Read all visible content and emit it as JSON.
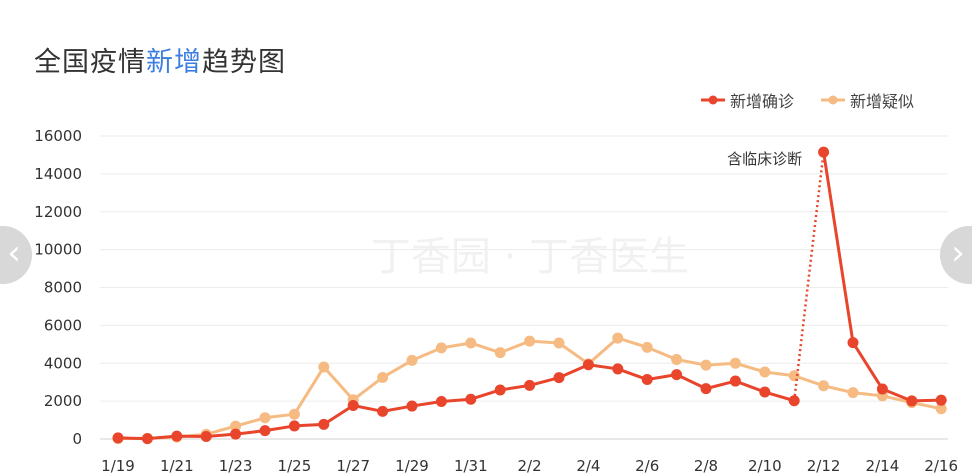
{
  "chart_data": {
    "type": "line",
    "title": {
      "part1": "全国疫情",
      "highlight": "新增",
      "part2": "趋势图"
    },
    "xlabel": "",
    "ylabel": "",
    "x": [
      "1/19",
      "1/20",
      "1/21",
      "1/22",
      "1/23",
      "1/24",
      "1/25",
      "1/26",
      "1/27",
      "1/28",
      "1/29",
      "1/30",
      "1/31",
      "2/1",
      "2/2",
      "2/3",
      "2/4",
      "2/5",
      "2/6",
      "2/7",
      "2/8",
      "2/9",
      "2/10",
      "2/11",
      "2/12",
      "2/13",
      "2/14",
      "2/15",
      "2/16"
    ],
    "x_tick_labels": [
      "1/19",
      "1/21",
      "1/23",
      "1/25",
      "1/27",
      "1/29",
      "1/31",
      "2/2",
      "2/4",
      "2/6",
      "2/8",
      "2/10",
      "2/12",
      "2/14",
      "2/16"
    ],
    "y_ticks": [
      0,
      2000,
      4000,
      6000,
      8000,
      10000,
      12000,
      14000,
      16000
    ],
    "ylim": [
      0,
      16000
    ],
    "grid": true,
    "legend_position": "top-right",
    "series": [
      {
        "name": "新增确诊",
        "color": "#e8452c",
        "values": [
          60,
          20,
          150,
          130,
          260,
          440,
          690,
          770,
          1770,
          1460,
          1740,
          1980,
          2100,
          2590,
          2830,
          3240,
          3920,
          3700,
          3140,
          3400,
          2660,
          3060,
          2480,
          2020,
          15150,
          5090,
          2640,
          2010,
          2050
        ]
      },
      {
        "name": "新增疑似",
        "color": "#f6bb82",
        "values": [
          20,
          30,
          100,
          250,
          680,
          1120,
          1310,
          3800,
          2070,
          3250,
          4150,
          4810,
          5070,
          4560,
          5170,
          5070,
          3970,
          5330,
          4840,
          4200,
          3900,
          4000,
          3540,
          3340,
          2810,
          2450,
          2280,
          1920,
          1600
        ]
      }
    ],
    "annotation": {
      "text": "含临床诊断",
      "from_index": 23,
      "to_index": 24
    },
    "watermark": "丁香园 · 丁香医生"
  },
  "nav": {
    "left_icon": "chevron-left-icon",
    "right_icon": "chevron-right-icon",
    "left_glyph": "‹",
    "right_glyph": "›"
  }
}
